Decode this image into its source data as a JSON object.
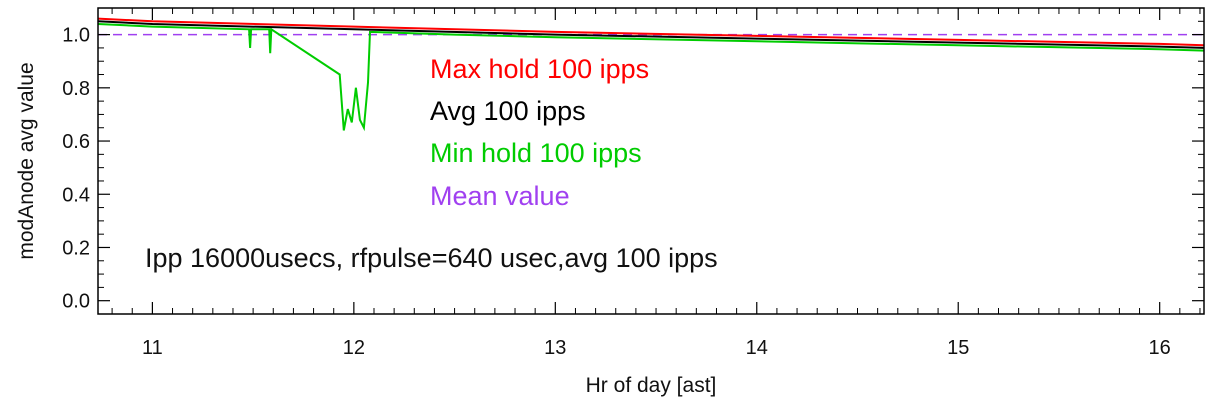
{
  "chart_data": {
    "type": "line",
    "title": "",
    "xlabel": "Hr of day [ast]",
    "ylabel": "modAnode avg value",
    "xlim": [
      10.73,
      16.22
    ],
    "ylim": [
      -0.05,
      1.1
    ],
    "x_ticks": [
      11,
      12,
      13,
      14,
      15,
      16
    ],
    "x_tick_labels": [
      "11",
      "12",
      "13",
      "14",
      "15",
      "16"
    ],
    "y_ticks": [
      0.0,
      0.2,
      0.4,
      0.6,
      0.8,
      1.0
    ],
    "y_tick_labels": [
      "0.0",
      "0.2",
      "0.4",
      "0.6",
      "0.8",
      "1.0"
    ],
    "grid": false,
    "legend_placement": "center",
    "annotation": "Ipp 16000usecs, rfpulse=640 usec,avg 100 ipps",
    "series": [
      {
        "name": "Max hold 100 ipps",
        "color": "#ff0000",
        "x": [
          10.73,
          11.0,
          12.0,
          13.0,
          14.0,
          15.0,
          16.0,
          16.22
        ],
        "values": [
          1.06,
          1.05,
          1.03,
          1.01,
          0.995,
          0.98,
          0.965,
          0.96
        ]
      },
      {
        "name": "Avg 100 ipps",
        "color": "#000000",
        "x": [
          10.73,
          11.0,
          12.0,
          13.0,
          14.0,
          15.0,
          16.0,
          16.22
        ],
        "values": [
          1.05,
          1.04,
          1.02,
          1.0,
          0.985,
          0.97,
          0.955,
          0.95
        ]
      },
      {
        "name": "Min hold 100 ipps",
        "color": "#00cc00",
        "x": [
          10.73,
          11.0,
          11.48,
          11.485,
          11.49,
          11.58,
          11.585,
          11.59,
          11.93,
          11.95,
          11.97,
          11.99,
          12.01,
          12.03,
          12.05,
          12.07,
          12.08,
          12.5,
          13.0,
          14.0,
          15.0,
          16.0,
          16.22
        ],
        "values": [
          1.04,
          1.03,
          1.02,
          0.95,
          1.02,
          1.02,
          0.93,
          1.02,
          0.85,
          0.64,
          0.72,
          0.67,
          0.8,
          0.68,
          0.65,
          0.82,
          1.01,
          1.0,
          0.99,
          0.975,
          0.96,
          0.945,
          0.94
        ]
      },
      {
        "name": "Mean value",
        "color": "#a040f0",
        "style": "dashed",
        "x": [
          10.73,
          16.22
        ],
        "values": [
          1.0,
          1.0
        ]
      }
    ]
  }
}
